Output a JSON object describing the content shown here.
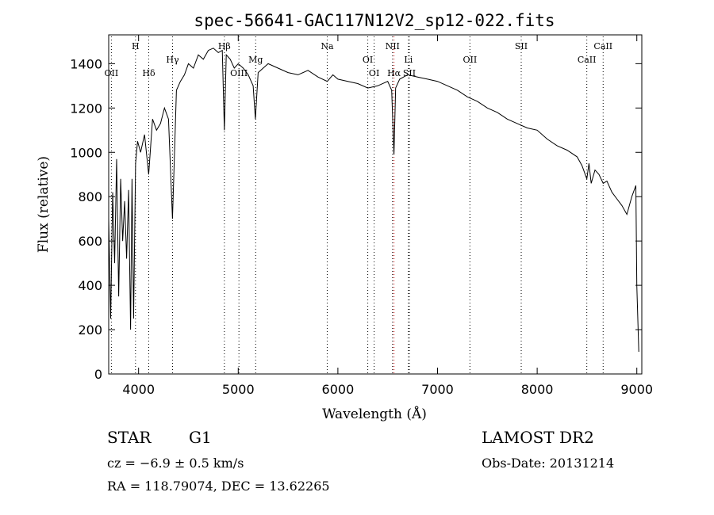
{
  "chart_data": {
    "type": "line",
    "title": "spec-56641-GAC117N12V2_sp12-022.fits",
    "xlabel": "Wavelength (Å)",
    "ylabel": "Flux (relative)",
    "xlim": [
      3700,
      9050
    ],
    "ylim": [
      0,
      1530
    ],
    "xticks": [
      4000,
      5000,
      6000,
      7000,
      8000,
      9000
    ],
    "yticks": [
      0,
      200,
      400,
      600,
      800,
      1000,
      1200,
      1400
    ],
    "series": [
      {
        "x": [
          3700,
          3720,
          3740,
          3760,
          3780,
          3800,
          3820,
          3840,
          3860,
          3880,
          3900,
          3920,
          3934,
          3950,
          3970,
          3990,
          4020,
          4060,
          4101,
          4140,
          4180,
          4220,
          4260,
          4300,
          4340,
          4380,
          4420,
          4460,
          4500,
          4550,
          4600,
          4650,
          4700,
          4750,
          4800,
          4840,
          4861,
          4880,
          4920,
          4960,
          5000,
          5050,
          5100,
          5150,
          5172,
          5200,
          5250,
          5300,
          5400,
          5500,
          5600,
          5700,
          5800,
          5893,
          5950,
          6000,
          6100,
          6200,
          6300,
          6400,
          6500,
          6540,
          6563,
          6580,
          6620,
          6700,
          6800,
          6900,
          7000,
          7100,
          7200,
          7300,
          7400,
          7500,
          7600,
          7700,
          7800,
          7900,
          8000,
          8100,
          8200,
          8300,
          8400,
          8450,
          8498,
          8520,
          8542,
          8580,
          8620,
          8662,
          8700,
          8750,
          8800,
          8850,
          8900,
          8950,
          8990,
          9000,
          9020
        ],
        "y": [
          700,
          250,
          820,
          500,
          970,
          350,
          880,
          600,
          780,
          520,
          830,
          200,
          880,
          250,
          950,
          1050,
          1000,
          1080,
          900,
          1150,
          1100,
          1130,
          1200,
          1150,
          700,
          1280,
          1320,
          1350,
          1400,
          1380,
          1440,
          1420,
          1460,
          1470,
          1450,
          1460,
          1100,
          1440,
          1420,
          1380,
          1400,
          1380,
          1350,
          1300,
          1150,
          1360,
          1380,
          1400,
          1380,
          1360,
          1350,
          1370,
          1340,
          1320,
          1350,
          1330,
          1320,
          1310,
          1290,
          1300,
          1320,
          1280,
          990,
          1290,
          1330,
          1350,
          1340,
          1330,
          1320,
          1300,
          1280,
          1250,
          1230,
          1200,
          1180,
          1150,
          1130,
          1110,
          1100,
          1060,
          1030,
          1010,
          980,
          940,
          880,
          950,
          860,
          920,
          900,
          860,
          870,
          820,
          790,
          760,
          720,
          800,
          850,
          400,
          100
        ]
      }
    ],
    "emission_lines": [
      {
        "label": "OII",
        "x": 3727,
        "row": "lower",
        "color": "#000000"
      },
      {
        "label": "H",
        "x": 3969,
        "row": "upper",
        "color": "#000000"
      },
      {
        "label": "Hδ",
        "x": 4102,
        "row": "lower",
        "color": "#000000"
      },
      {
        "label": "Hγ",
        "x": 4341,
        "row": "middle",
        "color": "#000000"
      },
      {
        "label": "Hβ",
        "x": 4861,
        "row": "upper",
        "color": "#000000"
      },
      {
        "label": "OIII",
        "x": 5007,
        "row": "lower",
        "color": "#000000"
      },
      {
        "label": "Mg",
        "x": 5175,
        "row": "middle",
        "color": "#000000"
      },
      {
        "label": "Na",
        "x": 5893,
        "row": "upper",
        "color": "#000000"
      },
      {
        "label": "OI",
        "x": 6300,
        "row": "middle",
        "color": "#000000"
      },
      {
        "label": "OI",
        "x": 6364,
        "row": "lower",
        "color": "#000000"
      },
      {
        "label": "NII",
        "x": 6548,
        "row": "upper",
        "color": "#000000"
      },
      {
        "label": "Hα",
        "x": 6563,
        "row": "lower",
        "color": "#cc0000"
      },
      {
        "label": "Li",
        "x": 6708,
        "row": "middle",
        "color": "#000000"
      },
      {
        "label": "SII",
        "x": 6717,
        "row": "lower",
        "color": "#000000"
      },
      {
        "label": "OII",
        "x": 7325,
        "row": "middle",
        "color": "#000000"
      },
      {
        "label": "SII",
        "x": 7840,
        "row": "upper",
        "color": "#000000"
      },
      {
        "label": "CaII",
        "x": 8498,
        "row": "middle",
        "color": "#000000"
      },
      {
        "label": "CaII",
        "x": 8662,
        "row": "upper",
        "color": "#000000"
      }
    ],
    "grid": false,
    "legend": "none"
  },
  "info": {
    "object_class": "STAR",
    "subclass": "G1",
    "survey": "LAMOST DR2",
    "cz": "cz = −6.9 ± 0.5 km/s",
    "obs_date": "Obs-Date: 20131214",
    "coords": "RA = 118.79074, DEC =  13.62265"
  }
}
